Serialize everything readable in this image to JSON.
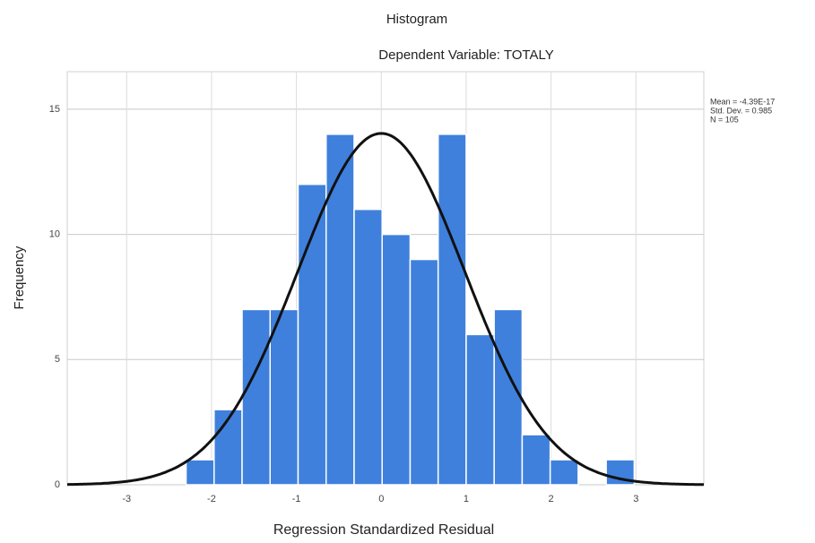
{
  "chart_data": {
    "type": "histogram",
    "title": "Histogram",
    "subtitle": "Dependent Variable: TOTALY",
    "x_label": "Regression Standardized Residual",
    "y_label": "Frequency",
    "bins": [
      -2.3,
      -1.97,
      -1.64,
      -1.31,
      -0.98,
      -0.65,
      -0.32,
      0.01,
      0.34,
      0.67,
      1.0,
      1.33,
      1.66,
      1.99,
      2.32,
      2.65,
      2.98
    ],
    "values": [
      1,
      3,
      7,
      7,
      12,
      14,
      11,
      10,
      9,
      14,
      6,
      7,
      2,
      1,
      0,
      1
    ],
    "color": "#3f80dd",
    "curve_color": "#111111",
    "stats": [
      {
        "value": -4.39e-17,
        "label": "Mean = -4.39E-17"
      },
      {
        "value": 0.985,
        "label": "Std. Dev. = 0.985"
      },
      {
        "value": 105,
        "label": "N = 105"
      }
    ],
    "xlim": [
      -3.7,
      3.8
    ],
    "ylim": [
      0,
      16.5
    ],
    "xticks": [
      -3,
      -2,
      -1,
      0,
      1,
      2,
      3
    ],
    "yticks": [
      0,
      5,
      10,
      15
    ],
    "grid": true
  }
}
